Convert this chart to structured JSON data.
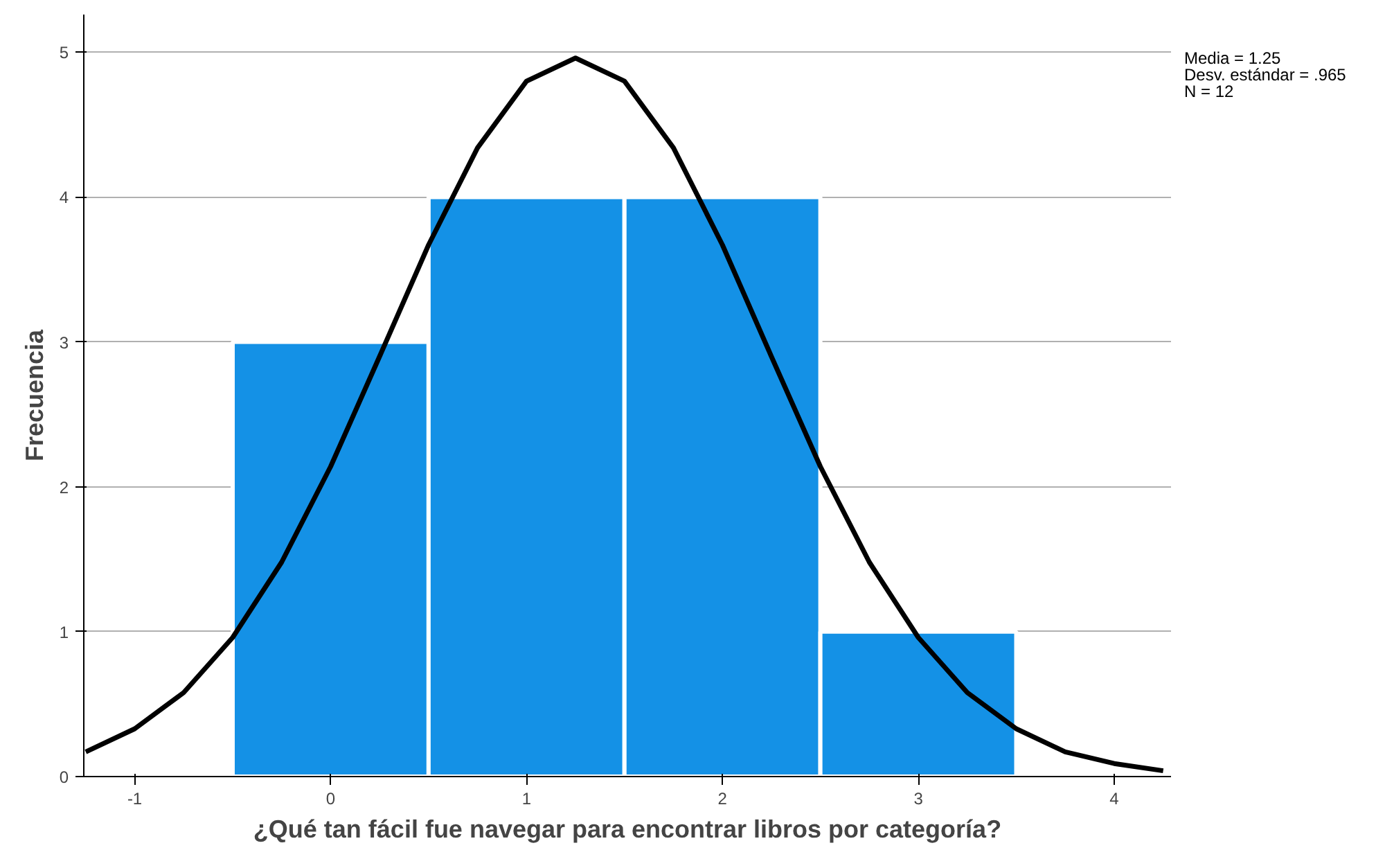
{
  "chart_data": {
    "type": "histogram",
    "xlabel": "¿Qué tan fácil fue navegar para encontrar libros por categoría?",
    "ylabel": "Frecuencia",
    "annotations": [
      "Media = 1.25",
      "Desv. estándar = .965",
      "N = 12"
    ],
    "series": [
      {
        "bins": [
          -0.5,
          0.5,
          1.5,
          2.5,
          3.5
        ],
        "values": [
          3,
          4,
          4,
          1
        ],
        "color": "#1491e6"
      },
      {
        "type": "line",
        "color": "#000000",
        "x": [
          -1.25,
          -1,
          -0.75,
          -0.5,
          -0.25,
          0,
          0.25,
          0.5,
          0.75,
          1,
          1.25,
          1.5,
          1.75,
          2,
          2.25,
          2.5,
          2.75,
          3,
          3.25,
          3.5,
          3.75,
          4,
          4.25
        ],
        "values": [
          0.17,
          0.33,
          0.58,
          0.96,
          1.48,
          2.14,
          2.9,
          3.67,
          4.34,
          4.8,
          4.96,
          4.8,
          4.34,
          3.67,
          2.9,
          2.14,
          1.48,
          0.96,
          0.58,
          0.33,
          0.17,
          0.09,
          0.04
        ]
      }
    ],
    "xlim": [
      -1.26,
      4.29
    ],
    "ylim": [
      0,
      5.26
    ],
    "xticks": [
      -1,
      0,
      1,
      2,
      3,
      4
    ],
    "yticks": [
      0,
      1,
      2,
      3,
      4,
      5
    ],
    "grid": "y"
  }
}
